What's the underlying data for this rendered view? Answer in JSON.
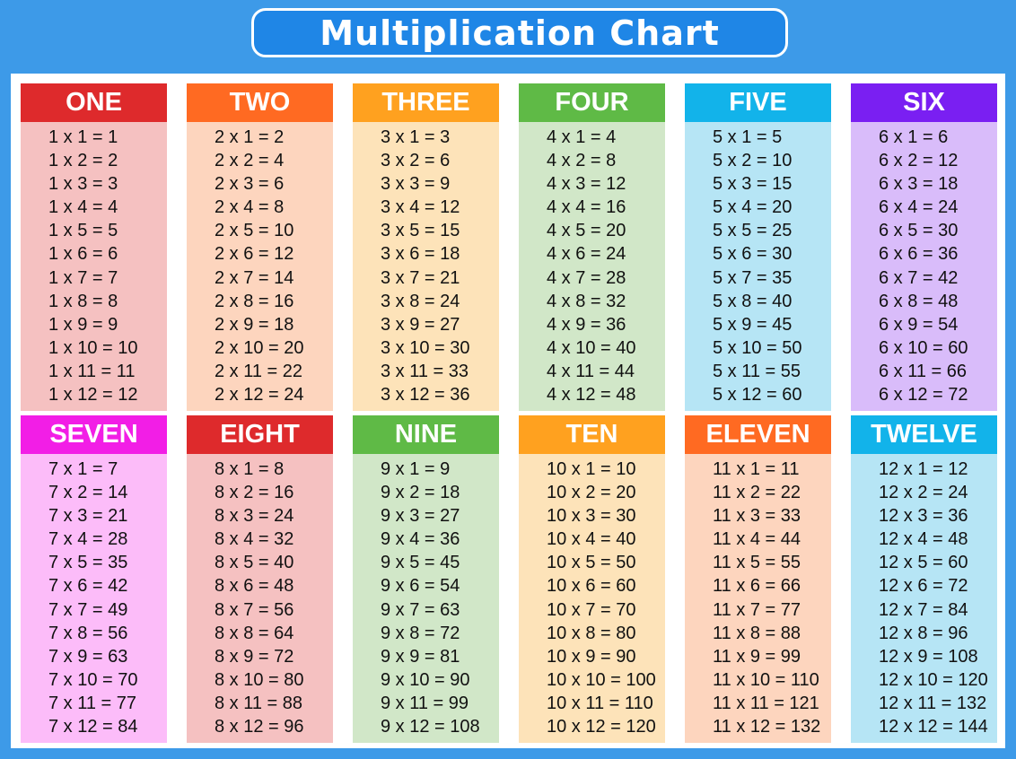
{
  "title": "Multiplication Chart",
  "tables": [
    {
      "name": "ONE",
      "header_color": "#de2a2c",
      "body_color": "#f5c1c1",
      "rows": [
        "1 x 1 = 1",
        "1 x 2 = 2",
        "1 x 3 = 3",
        "1 x 4 = 4",
        "1 x 5 = 5",
        "1 x 6 = 6",
        "1 x 7 = 7",
        "1 x 8 = 8",
        "1 x 9 = 9",
        "1 x 10 = 10",
        "1 x 11 = 11",
        "1 x 12 = 12"
      ]
    },
    {
      "name": "TWO",
      "header_color": "#ff6a22",
      "body_color": "#fdd5be",
      "rows": [
        "2 x 1 = 2",
        "2 x 2 = 4",
        "2 x 3 = 6",
        "2 x 4 = 8",
        "2 x 5 = 10",
        "2 x 6 = 12",
        "2 x 7 = 14",
        "2 x 8 = 16",
        "2 x 9 = 18",
        "2 x 10 = 20",
        "2 x 11 = 22",
        "2 x 12 = 24"
      ]
    },
    {
      "name": "THREE",
      "header_color": "#ffa11f",
      "body_color": "#fde3b9",
      "rows": [
        "3 x 1 = 3",
        "3 x 2 = 6",
        "3 x 3 = 9",
        "3 x 4 = 12",
        "3 x 5 = 15",
        "3 x 6 = 18",
        "3 x 7 = 21",
        "3 x 8 = 24",
        "3 x 9 = 27",
        "3 x 10 = 30",
        "3 x 11 = 33",
        "3 x 12 = 36"
      ]
    },
    {
      "name": "FOUR",
      "header_color": "#5fba46",
      "body_color": "#d1e7c8",
      "rows": [
        "4 x 1 = 4",
        "4 x 2 = 8",
        "4 x 3 = 12",
        "4 x 4 = 16",
        "4 x 5 = 20",
        "4 x 6 = 24",
        "4 x 7 = 28",
        "4 x 8 = 32",
        "4 x 9 = 36",
        "4 x 10 = 40",
        "4 x 11 = 44",
        "4 x 12 = 48"
      ]
    },
    {
      "name": "FIVE",
      "header_color": "#12b3ea",
      "body_color": "#b6e5f5",
      "rows": [
        "5 x 1 = 5",
        "5 x 2 = 10",
        "5 x 3 = 15",
        "5 x 4 = 20",
        "5 x 5 = 25",
        "5 x 6 = 30",
        "5 x 7 = 35",
        "5 x 8 = 40",
        "5 x 9 = 45",
        "5 x 10 = 50",
        "5 x 11 = 55",
        "5 x 12 = 60"
      ]
    },
    {
      "name": "SIX",
      "header_color": "#7a1ff2",
      "body_color": "#d9bcfa",
      "rows": [
        "6 x 1 = 6",
        "6 x 2 = 12",
        "6 x 3 = 18",
        "6 x 4 = 24",
        "6 x 5 = 30",
        "6 x 6 = 36",
        "6 x 7 = 42",
        "6 x 8 = 48",
        "6 x 9 = 54",
        "6 x 10 = 60",
        "6 x 11 = 66",
        "6 x 12 = 72"
      ]
    },
    {
      "name": "SEVEN",
      "header_color": "#f21ee6",
      "body_color": "#fcbcf9",
      "rows": [
        "7 x 1 = 7",
        "7 x 2 = 14",
        "7 x 3 = 21",
        "7 x 4 = 28",
        "7 x 5 = 35",
        "7 x 6 = 42",
        "7 x 7 = 49",
        "7 x 8 = 56",
        "7 x 9 = 63",
        "7 x 10 = 70",
        "7 x 11 = 77",
        "7 x 12 = 84"
      ]
    },
    {
      "name": "EIGHT",
      "header_color": "#de2a2c",
      "body_color": "#f5c1c1",
      "rows": [
        "8 x 1 = 8",
        "8 x 2 = 16",
        "8 x 3 = 24",
        "8 x 4 = 32",
        "8 x 5 = 40",
        "8 x 6 = 48",
        "8 x 7 = 56",
        "8 x 8 = 64",
        "8 x 9 = 72",
        "8 x 10 = 80",
        "8 x 11 = 88",
        "8 x 12 = 96"
      ]
    },
    {
      "name": "NINE",
      "header_color": "#5fba46",
      "body_color": "#d1e7c8",
      "rows": [
        "9 x 1 = 9",
        "9 x 2 = 18",
        "9 x 3 = 27",
        "9 x 4 = 36",
        "9 x 5 = 45",
        "9 x 6 = 54",
        "9 x 7 = 63",
        "9 x 8 = 72",
        "9 x 9 = 81",
        "9 x 10 = 90",
        "9 x 11 = 99",
        "9 x 12 = 108"
      ]
    },
    {
      "name": "TEN",
      "header_color": "#ffa11f",
      "body_color": "#fde3b9",
      "rows": [
        "10 x 1 = 10",
        "10 x 2 = 20",
        "10 x 3 = 30",
        "10 x 4 = 40",
        "10 x 5 = 50",
        "10 x 6 = 60",
        "10 x 7 = 70",
        "10 x 8 = 80",
        "10 x 9 = 90",
        "10 x 10 = 100",
        "10 x 11 = 110",
        "10 x 12 = 120"
      ]
    },
    {
      "name": "ELEVEN",
      "header_color": "#ff6a22",
      "body_color": "#fdd5be",
      "rows": [
        "11 x 1 = 11",
        "11 x 2 = 22",
        "11 x 3 = 33",
        "11 x 4 = 44",
        "11 x 5 = 55",
        "11 x 6 = 66",
        "11 x 7 = 77",
        "11 x 8 = 88",
        "11 x 9 = 99",
        "11 x 10 = 110",
        "11 x 11 = 121",
        "11 x 12 = 132"
      ]
    },
    {
      "name": "TWELVE",
      "header_color": "#12b3ea",
      "body_color": "#b6e5f5",
      "rows": [
        "12 x 1 = 12",
        "12 x 2 = 24",
        "12 x 3 = 36",
        "12 x 4 = 48",
        "12 x 5 = 60",
        "12 x 6 = 72",
        "12 x 7 = 84",
        "12 x 8 = 96",
        "12 x 9 = 108",
        "12 x 10 = 120",
        "12 x 11 = 132",
        "12 x 12 = 144"
      ]
    }
  ]
}
